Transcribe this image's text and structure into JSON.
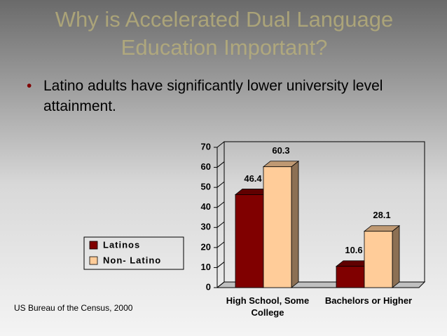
{
  "slide": {
    "title": "Why is Accelerated Dual Language Education Important?",
    "bullet": "Latino adults have significantly lower university level attainment.",
    "source": "US Bureau of the Census, 2000"
  },
  "chart_data": {
    "type": "bar",
    "categories": [
      "High School, Some College",
      "Bachelors or Higher"
    ],
    "series": [
      {
        "name": "Latinos",
        "color": "#800000",
        "values": [
          46.4,
          10.6
        ]
      },
      {
        "name": "Non- Latino",
        "color": "#ffcc99",
        "values": [
          60.3,
          28.1
        ]
      }
    ],
    "ylim": [
      0,
      70
    ],
    "yticks": [
      0,
      10,
      20,
      30,
      40,
      50,
      60,
      70
    ],
    "grid": false,
    "legend": "left"
  }
}
